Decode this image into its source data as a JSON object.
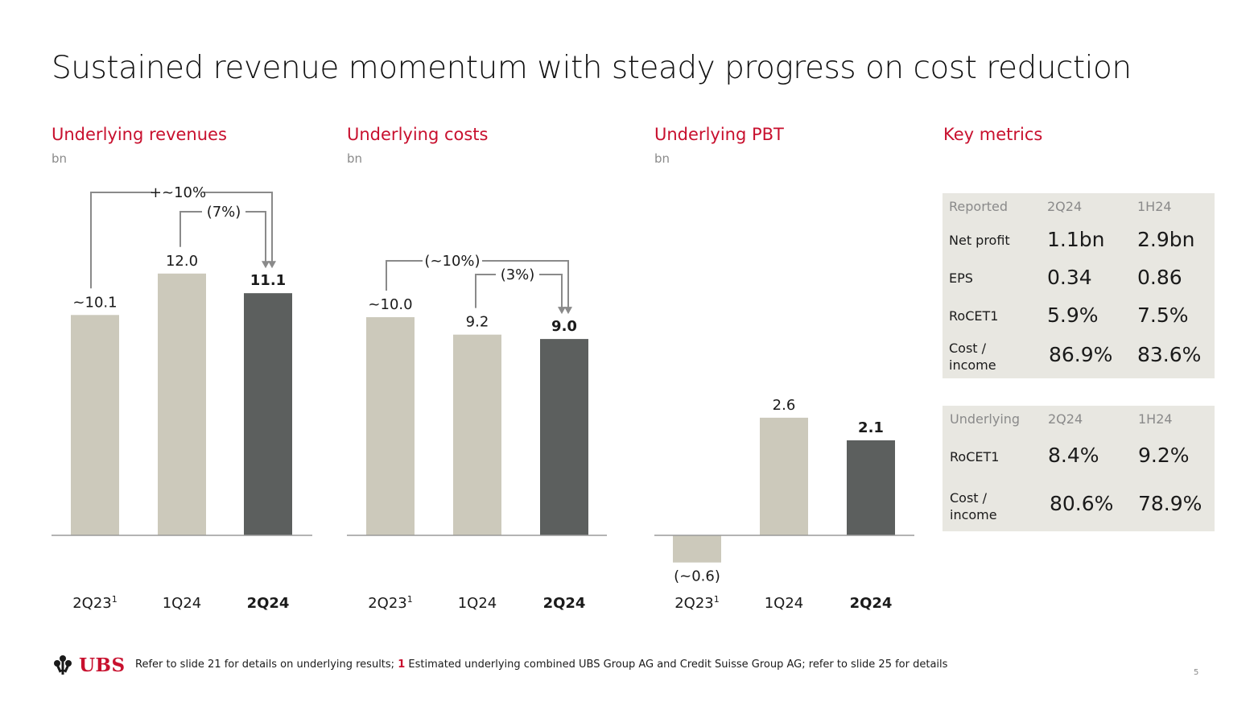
{
  "slide_title": "Sustained revenue momentum with steady progress on cost reduction",
  "colors": {
    "accent": "#c8102e",
    "bar_light": "#ccc9bb",
    "bar_dark": "#5c5f5e",
    "axis": "#9a9a9a",
    "connector": "#8a8a8a",
    "metrics_bg": "#e8e7e1"
  },
  "chart_data": [
    {
      "type": "bar",
      "title": "Underlying revenues",
      "unit": "bn",
      "categories": [
        "2Q23",
        "1Q24",
        "2Q24"
      ],
      "category_superscripts": [
        "1",
        "",
        ""
      ],
      "category_bold": [
        false,
        false,
        true
      ],
      "values": [
        10.1,
        12.0,
        11.1
      ],
      "value_labels": [
        "~10.1",
        "12.0",
        "11.1"
      ],
      "highlight": [
        false,
        false,
        true
      ],
      "ylim": [
        0,
        13
      ],
      "annotations": [
        {
          "text": "+~10%",
          "from": 0,
          "to": 2
        },
        {
          "text": "(7%)",
          "from": 1,
          "to": 2
        }
      ]
    },
    {
      "type": "bar",
      "title": "Underlying costs",
      "unit": "bn",
      "categories": [
        "2Q23",
        "1Q24",
        "2Q24"
      ],
      "category_superscripts": [
        "1",
        "",
        ""
      ],
      "category_bold": [
        false,
        false,
        true
      ],
      "values": [
        10.0,
        9.2,
        9.0
      ],
      "value_labels": [
        "~10.0",
        "9.2",
        "9.0"
      ],
      "highlight": [
        false,
        false,
        true
      ],
      "ylim": [
        0,
        13
      ],
      "annotations": [
        {
          "text": "(~10%)",
          "from": 0,
          "to": 2
        },
        {
          "text": "(3%)",
          "from": 1,
          "to": 2
        }
      ]
    },
    {
      "type": "bar",
      "title": "Underlying PBT",
      "unit": "bn",
      "categories": [
        "2Q23",
        "1Q24",
        "2Q24"
      ],
      "category_superscripts": [
        "1",
        "",
        ""
      ],
      "category_bold": [
        false,
        false,
        true
      ],
      "values": [
        -0.6,
        2.6,
        2.1
      ],
      "value_labels": [
        "(~0.6)",
        "2.6",
        "2.1"
      ],
      "highlight": [
        false,
        false,
        true
      ],
      "ylim": [
        -1,
        13
      ],
      "annotations": []
    }
  ],
  "key_metrics": {
    "title": "Key metrics",
    "reported": {
      "header": [
        "Reported",
        "2Q24",
        "1H24"
      ],
      "rows": [
        {
          "label": "Net profit",
          "q": "1.1bn",
          "h": "2.9bn"
        },
        {
          "label": "EPS",
          "q": "0.34",
          "h": "0.86"
        },
        {
          "label": "RoCET1",
          "q": "5.9%",
          "h": "7.5%"
        },
        {
          "label": "Cost / income",
          "q": "86.9%",
          "h": "83.6%"
        }
      ]
    },
    "underlying": {
      "header": [
        "Underlying",
        "2Q24",
        "1H24"
      ],
      "rows": [
        {
          "label": "RoCET1",
          "q": "8.4%",
          "h": "9.2%"
        },
        {
          "label": "Cost / income",
          "q": "80.6%",
          "h": "78.9%"
        }
      ]
    }
  },
  "footer": {
    "logo_text": "UBS",
    "note_prefix": "Refer to slide 21 for details on underlying results; ",
    "note_num": "1",
    "note_suffix": " Estimated underlying combined UBS Group AG and Credit Suisse Group AG; refer to slide 25 for details",
    "page_number": "5"
  }
}
